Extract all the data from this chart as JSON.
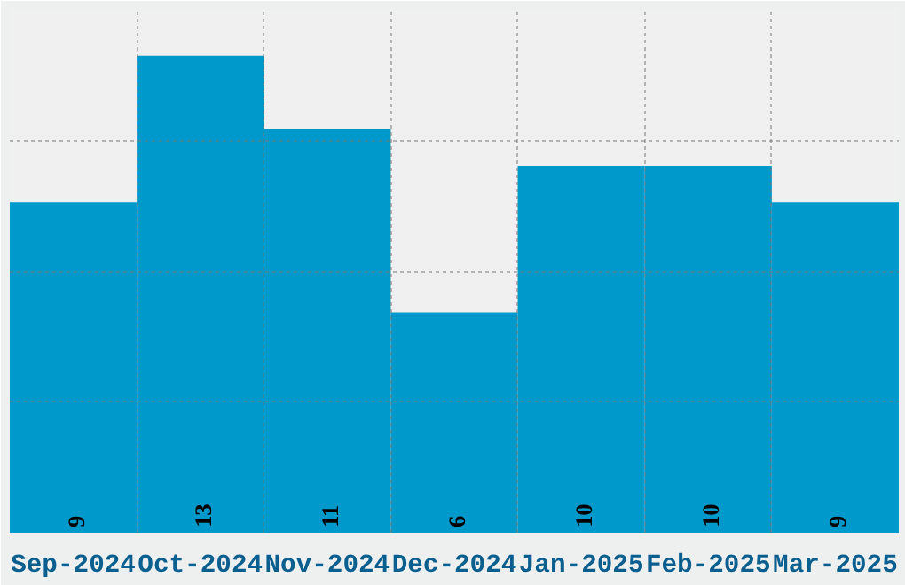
{
  "chart_data": {
    "type": "bar",
    "categories": [
      "Sep-2024",
      "Oct-2024",
      "Nov-2024",
      "Dec-2024",
      "Jan-2025",
      "Feb-2025",
      "Mar-2025"
    ],
    "values": [
      9,
      13,
      11,
      6,
      10,
      10,
      9
    ],
    "color": "#0099cc",
    "ylim": [
      0,
      14.25
    ],
    "yticks": [
      {
        "value": 0,
        "label": null
      },
      {
        "value": 3.5625,
        "label": null
      },
      {
        "value": 7.125,
        "label": null
      },
      {
        "value": 10.6875,
        "label": null
      },
      {
        "value": 14.25,
        "label": null
      }
    ],
    "tick_labels": "x",
    "grid": true,
    "data_labels": true
  }
}
